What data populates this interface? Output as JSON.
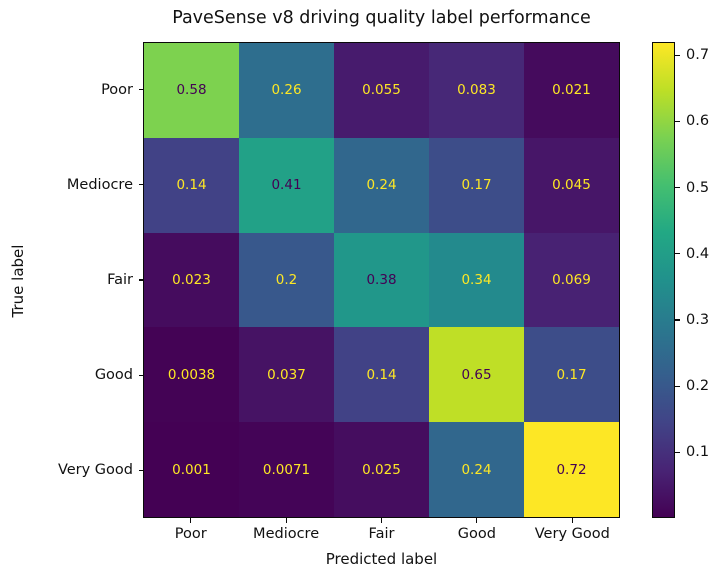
{
  "chart_data": {
    "type": "heatmap",
    "title": "PaveSense v8 driving quality label performance",
    "xlabel": "Predicted label",
    "ylabel": "True label",
    "x_categories": [
      "Poor",
      "Mediocre",
      "Fair",
      "Good",
      "Very Good"
    ],
    "y_categories": [
      "Poor",
      "Mediocre",
      "Fair",
      "Good",
      "Very Good"
    ],
    "matrix": [
      [
        0.58,
        0.26,
        0.055,
        0.083,
        0.021
      ],
      [
        0.14,
        0.41,
        0.24,
        0.17,
        0.045
      ],
      [
        0.023,
        0.2,
        0.38,
        0.34,
        0.069
      ],
      [
        0.0038,
        0.037,
        0.14,
        0.65,
        0.17
      ],
      [
        0.001,
        0.0071,
        0.025,
        0.24,
        0.72
      ]
    ],
    "cell_labels": [
      [
        "0.58",
        "0.26",
        "0.055",
        "0.083",
        "0.021"
      ],
      [
        "0.14",
        "0.41",
        "0.24",
        "0.17",
        "0.045"
      ],
      [
        "0.023",
        "0.2",
        "0.38",
        "0.34",
        "0.069"
      ],
      [
        "0.0038",
        "0.037",
        "0.14",
        "0.65",
        "0.17"
      ],
      [
        "0.001",
        "0.0071",
        "0.025",
        "0.24",
        "0.72"
      ]
    ],
    "colormap": "viridis",
    "vmin": 0.001,
    "vmax": 0.72,
    "colorbar_ticks": [
      "0.7",
      "0.6",
      "0.5",
      "0.4",
      "0.3",
      "0.2",
      "0.1"
    ],
    "colorbar_tick_values": [
      0.7,
      0.6,
      0.5,
      0.4,
      0.3,
      0.2,
      0.1
    ],
    "legend_position": "right-colorbar",
    "grid": false,
    "colors": {
      "cell_text_on_dark": "#fde725",
      "cell_text_on_light": "#440154",
      "axis_text": "#111111",
      "spine": "#0a0a0a",
      "background": "#ffffff"
    }
  }
}
